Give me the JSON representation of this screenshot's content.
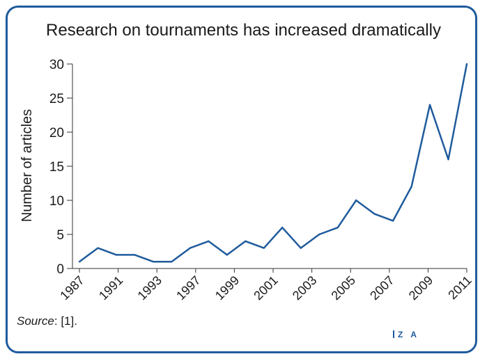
{
  "chart_data": {
    "type": "line",
    "title": "Research on tournaments has increased dramatically",
    "ylabel": "Number of articles",
    "xlabel": "",
    "ylim": [
      0,
      30
    ],
    "yticks": [
      0,
      5,
      10,
      15,
      20,
      25,
      30
    ],
    "xtick_labels": [
      "1987",
      "1991",
      "1993",
      "1997",
      "1999",
      "2001",
      "2003",
      "2005",
      "2007",
      "2009",
      "2011"
    ],
    "series": [
      {
        "color": "#1f5b9c",
        "values": [
          1,
          3,
          2,
          2,
          1,
          1,
          3,
          4,
          2,
          4,
          3,
          6,
          3,
          5,
          6,
          10,
          8,
          7,
          12,
          24,
          16,
          30
        ]
      }
    ],
    "grid": false
  },
  "source": {
    "label": "Source",
    "text": ": [1]."
  },
  "logo": {
    "text": "Z A"
  },
  "colors": {
    "line": "#1f5b9c",
    "border": "#1f5b9c",
    "axis": "#333333"
  }
}
